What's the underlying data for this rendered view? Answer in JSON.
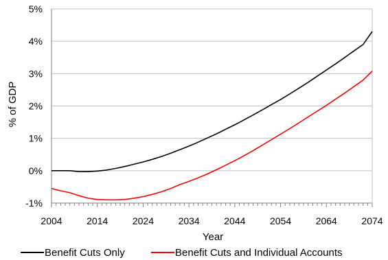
{
  "chart_data": {
    "type": "line",
    "xlabel": "Year",
    "ylabel": "% of GDP",
    "xlim": [
      2004,
      2074
    ],
    "ylim": [
      -1,
      5
    ],
    "x_tick_labels": [
      "2004",
      "2014",
      "2024",
      "2034",
      "2044",
      "2054",
      "2064",
      "2074"
    ],
    "x_ticks": [
      2004,
      2014,
      2024,
      2034,
      2044,
      2054,
      2064,
      2074
    ],
    "y_tick_labels": [
      "-1%",
      "0%",
      "1%",
      "2%",
      "3%",
      "4%",
      "5%"
    ],
    "y_ticks": [
      -1,
      0,
      1,
      2,
      3,
      4,
      5
    ],
    "grid": "horizontal",
    "legend_position": "bottom",
    "x": [
      2004,
      2006,
      2008,
      2010,
      2012,
      2014,
      2016,
      2018,
      2020,
      2022,
      2024,
      2026,
      2028,
      2030,
      2032,
      2034,
      2036,
      2038,
      2040,
      2042,
      2044,
      2046,
      2048,
      2050,
      2052,
      2054,
      2056,
      2058,
      2060,
      2062,
      2064,
      2066,
      2068,
      2070,
      2072,
      2074
    ],
    "series": [
      {
        "name": "Benefit Cuts Only",
        "color": "#000000",
        "values": [
          0.0,
          0.0,
          0.0,
          -0.03,
          -0.03,
          -0.01,
          0.02,
          0.07,
          0.13,
          0.2,
          0.27,
          0.35,
          0.44,
          0.54,
          0.65,
          0.76,
          0.88,
          1.01,
          1.14,
          1.28,
          1.42,
          1.57,
          1.72,
          1.88,
          2.04,
          2.2,
          2.37,
          2.55,
          2.73,
          2.92,
          3.11,
          3.3,
          3.5,
          3.7,
          3.9,
          4.3
        ]
      },
      {
        "name": "Benefit Cuts and Individual Accounts",
        "color": "#ff0000",
        "values": [
          -0.55,
          -0.62,
          -0.68,
          -0.77,
          -0.85,
          -0.89,
          -0.9,
          -0.9,
          -0.89,
          -0.85,
          -0.8,
          -0.73,
          -0.65,
          -0.55,
          -0.43,
          -0.33,
          -0.22,
          -0.1,
          0.03,
          0.17,
          0.31,
          0.46,
          0.62,
          0.79,
          0.96,
          1.13,
          1.3,
          1.48,
          1.66,
          1.84,
          2.02,
          2.21,
          2.4,
          2.6,
          2.8,
          3.08
        ]
      }
    ]
  },
  "colors": {
    "grid": "#c0c0c0",
    "axis": "#808080"
  }
}
